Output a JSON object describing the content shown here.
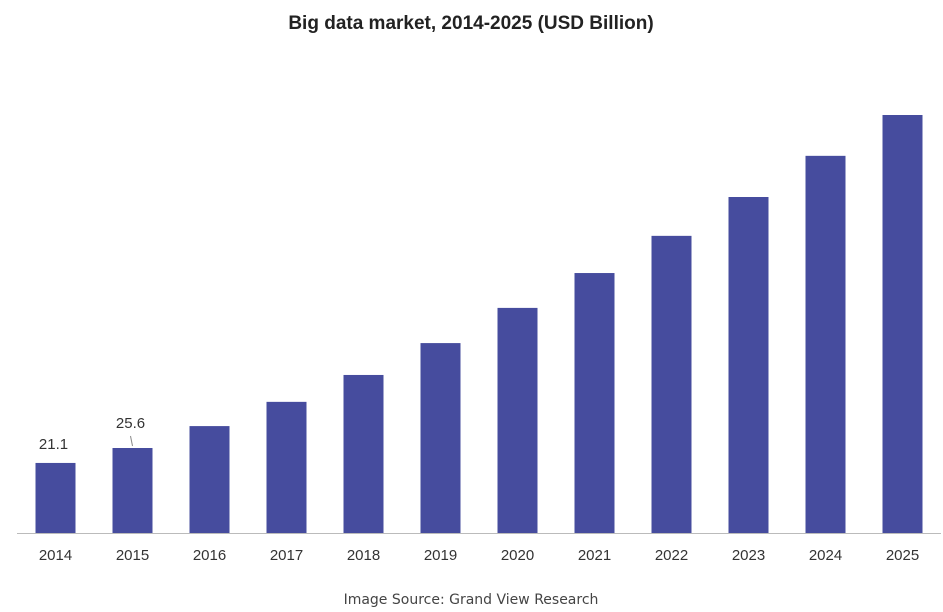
{
  "chart_data": {
    "type": "bar",
    "title": "Big data market, 2014-2025 (USD Billion)",
    "categories": [
      "2014",
      "2015",
      "2016",
      "2017",
      "2018",
      "2019",
      "2020",
      "2021",
      "2022",
      "2023",
      "2024",
      "2025"
    ],
    "values": [
      21.1,
      25.6,
      32.2,
      39.5,
      47.6,
      57.2,
      67.8,
      78.3,
      89.5,
      101.2,
      113.6,
      125.9
    ],
    "value_labels": [
      "21.1",
      "25.6",
      null,
      null,
      null,
      null,
      null,
      null,
      null,
      null,
      null,
      null
    ],
    "color": "#464c9e",
    "source": "Image Source: Grand View Research"
  }
}
